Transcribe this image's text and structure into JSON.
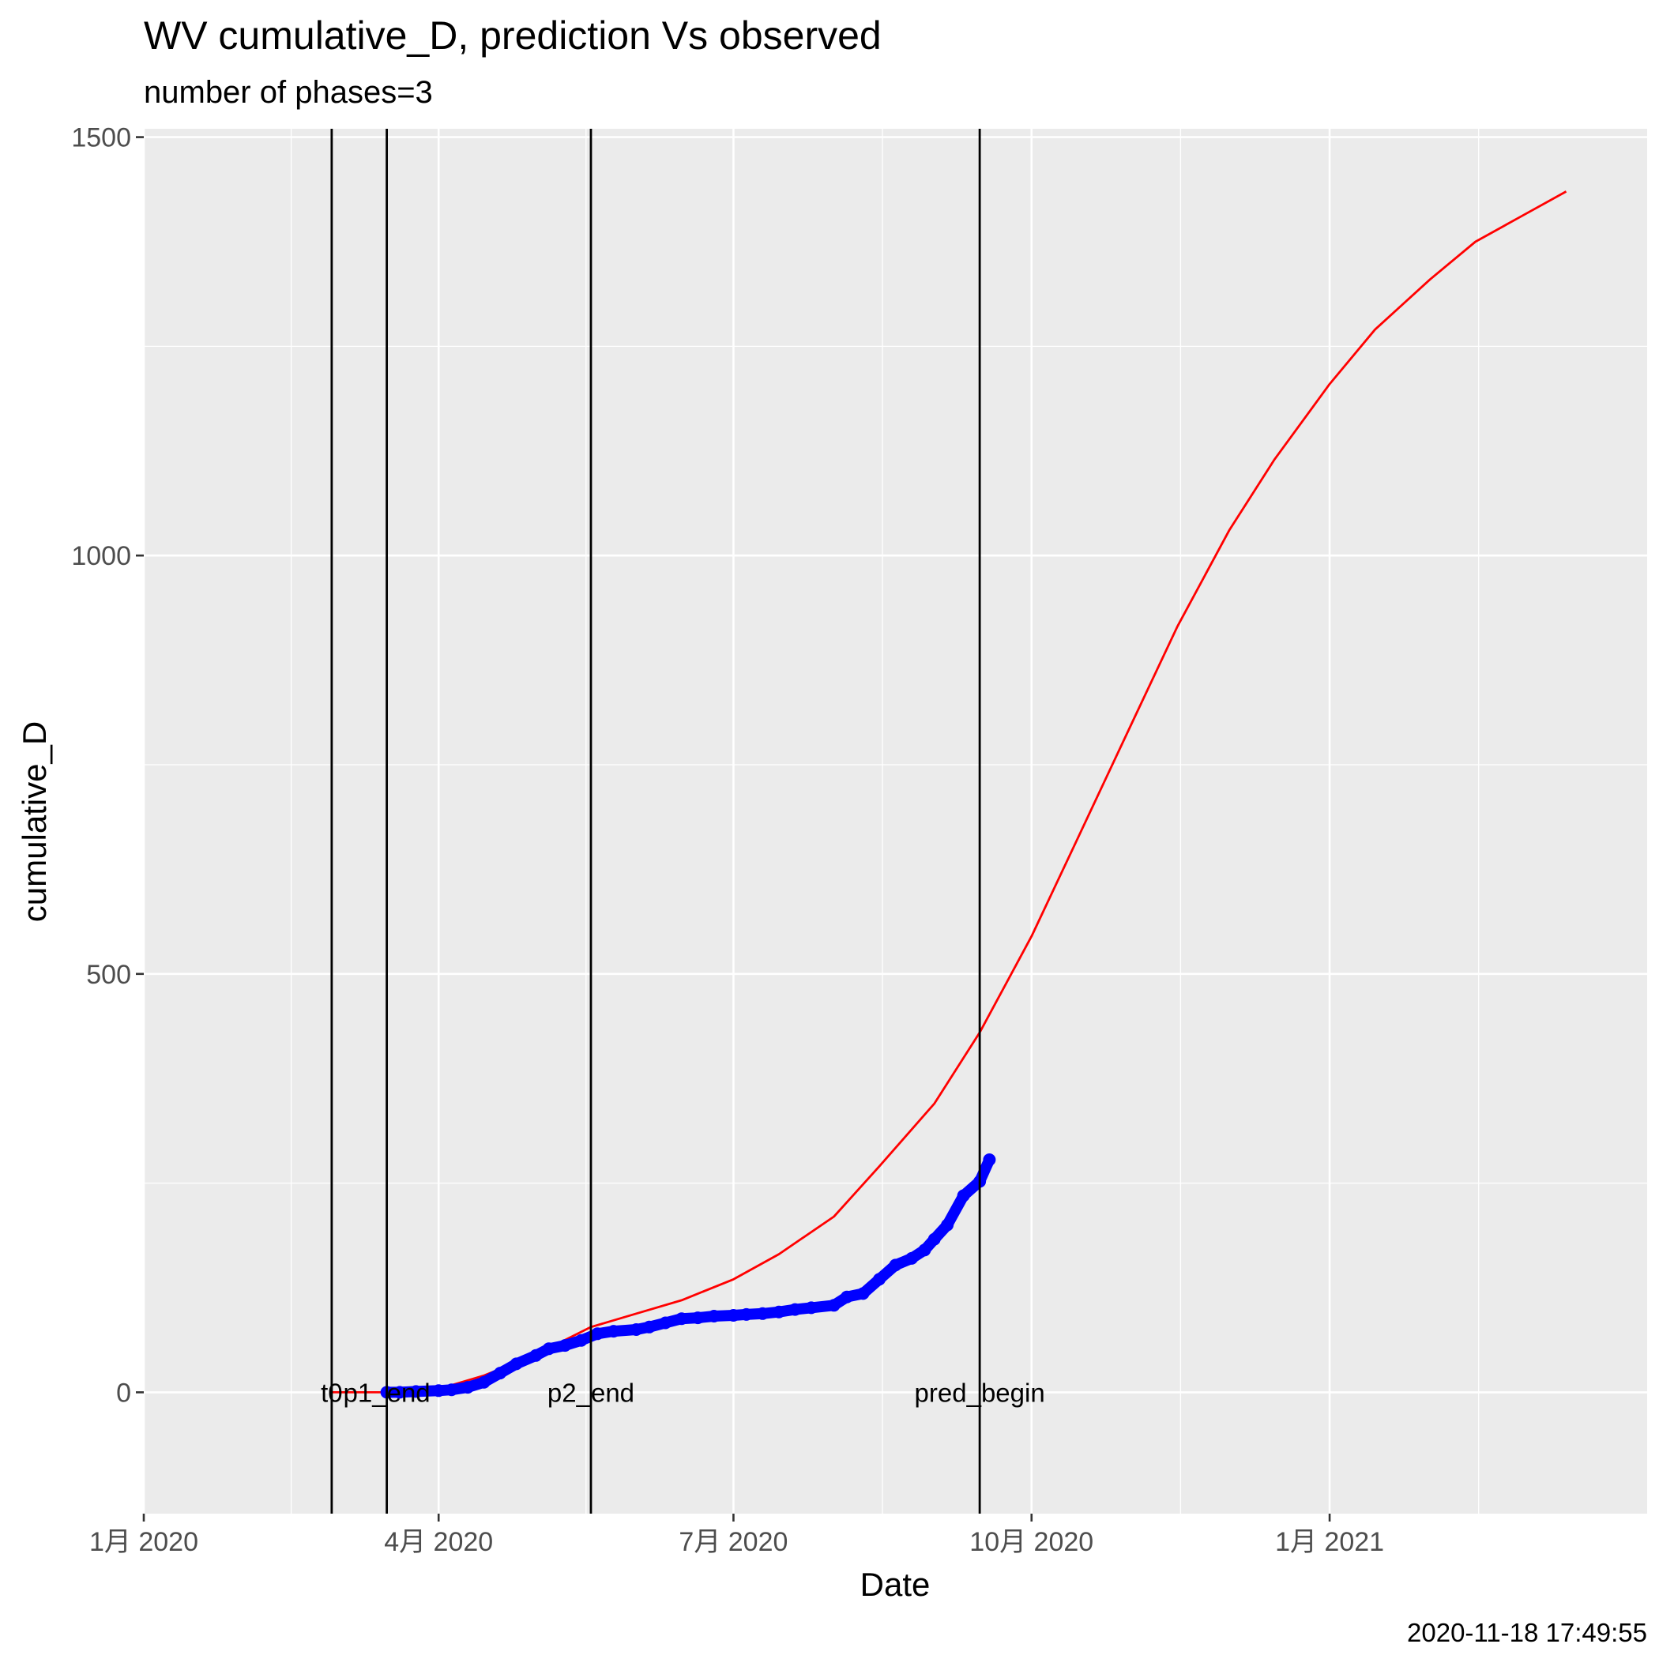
{
  "chart_data": {
    "type": "line",
    "title": "WV cumulative_D,  prediction Vs observed",
    "subtitle": "number of phases=3",
    "xlabel": "Date",
    "ylabel": "cumulative_D",
    "caption": "2020-11-18 17:49:55",
    "xlim": [
      "2020-01-01",
      "2021-04-09"
    ],
    "ylim": [
      -145,
      1510
    ],
    "grid": true,
    "x_ticks": [
      {
        "date": "2020-01-01",
        "label": "1月 2020"
      },
      {
        "date": "2020-04-01",
        "label": "4月 2020"
      },
      {
        "date": "2020-07-01",
        "label": "7月 2020"
      },
      {
        "date": "2020-10-01",
        "label": "10月 2020"
      },
      {
        "date": "2021-01-01",
        "label": "1月 2021"
      }
    ],
    "y_ticks": [
      0,
      500,
      1000,
      1500
    ],
    "vlines": [
      {
        "date": "2020-02-28",
        "label": "t0"
      },
      {
        "date": "2020-03-16",
        "label": "p1_end"
      },
      {
        "date": "2020-05-18",
        "label": "p2_end"
      },
      {
        "date": "2020-09-15",
        "label": "pred_begin"
      }
    ],
    "series": [
      {
        "kind": "prediction",
        "color": "#ff0000",
        "points": [
          [
            "2020-02-28",
            0
          ],
          [
            "2020-03-16",
            0
          ],
          [
            "2020-04-01",
            4
          ],
          [
            "2020-04-15",
            20
          ],
          [
            "2020-05-01",
            45
          ],
          [
            "2020-05-18",
            78
          ],
          [
            "2020-06-01",
            94
          ],
          [
            "2020-06-15",
            110
          ],
          [
            "2020-07-01",
            135
          ],
          [
            "2020-07-15",
            165
          ],
          [
            "2020-08-01",
            210
          ],
          [
            "2020-08-15",
            270
          ],
          [
            "2020-09-01",
            345
          ],
          [
            "2020-09-15",
            430
          ],
          [
            "2020-10-01",
            545
          ],
          [
            "2020-10-15",
            660
          ],
          [
            "2020-11-01",
            800
          ],
          [
            "2020-11-15",
            915
          ],
          [
            "2020-12-01",
            1030
          ],
          [
            "2020-12-15",
            1115
          ],
          [
            "2021-01-01",
            1205
          ],
          [
            "2021-01-15",
            1270
          ],
          [
            "2021-02-01",
            1330
          ],
          [
            "2021-02-15",
            1375
          ],
          [
            "2021-03-01",
            1405
          ],
          [
            "2021-03-15",
            1435
          ]
        ]
      },
      {
        "kind": "observed",
        "color": "#0000ff",
        "points": [
          [
            "2020-03-16",
            0
          ],
          [
            "2020-03-20",
            0
          ],
          [
            "2020-03-25",
            1
          ],
          [
            "2020-04-01",
            2
          ],
          [
            "2020-04-05",
            3
          ],
          [
            "2020-04-10",
            6
          ],
          [
            "2020-04-15",
            12
          ],
          [
            "2020-04-20",
            23
          ],
          [
            "2020-04-25",
            34
          ],
          [
            "2020-05-01",
            44
          ],
          [
            "2020-05-05",
            52
          ],
          [
            "2020-05-10",
            56
          ],
          [
            "2020-05-15",
            62
          ],
          [
            "2020-05-20",
            70
          ],
          [
            "2020-05-25",
            73
          ],
          [
            "2020-06-01",
            75
          ],
          [
            "2020-06-05",
            78
          ],
          [
            "2020-06-10",
            83
          ],
          [
            "2020-06-15",
            88
          ],
          [
            "2020-06-20",
            89
          ],
          [
            "2020-06-25",
            91
          ],
          [
            "2020-07-01",
            92
          ],
          [
            "2020-07-05",
            93
          ],
          [
            "2020-07-10",
            94
          ],
          [
            "2020-07-15",
            96
          ],
          [
            "2020-07-20",
            99
          ],
          [
            "2020-07-25",
            101
          ],
          [
            "2020-08-01",
            104
          ],
          [
            "2020-08-05",
            114
          ],
          [
            "2020-08-10",
            118
          ],
          [
            "2020-08-15",
            135
          ],
          [
            "2020-08-20",
            152
          ],
          [
            "2020-08-25",
            160
          ],
          [
            "2020-08-29",
            170
          ],
          [
            "2020-09-01",
            183
          ],
          [
            "2020-09-05",
            200
          ],
          [
            "2020-09-10",
            235
          ],
          [
            "2020-09-15",
            252
          ],
          [
            "2020-09-18",
            278
          ]
        ]
      }
    ]
  }
}
